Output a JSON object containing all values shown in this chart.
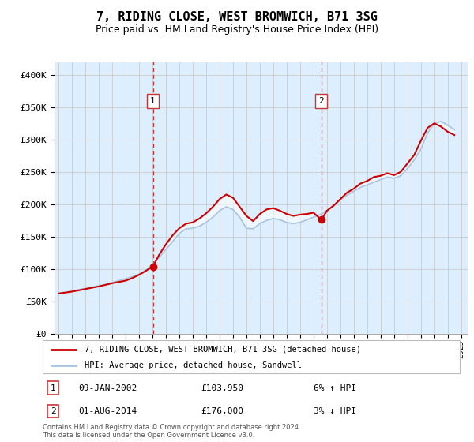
{
  "title": "7, RIDING CLOSE, WEST BROMWICH, B71 3SG",
  "subtitle": "Price paid vs. HM Land Registry's House Price Index (HPI)",
  "title_fontsize": 11,
  "subtitle_fontsize": 9,
  "background_color": "#ffffff",
  "plot_bg_color": "#ddeeff",
  "grid_color": "#cccccc",
  "legend_label_red": "7, RIDING CLOSE, WEST BROMWICH, B71 3SG (detached house)",
  "legend_label_blue": "HPI: Average price, detached house, Sandwell",
  "footer1": "Contains HM Land Registry data © Crown copyright and database right 2024.",
  "footer2": "This data is licensed under the Open Government Licence v3.0.",
  "marker1_date": 2002.03,
  "marker1_value": 103950,
  "marker2_date": 2014.58,
  "marker2_value": 176000,
  "hpi_color": "#aac4e0",
  "price_color": "#cc0000",
  "vline_color": "#cc3333",
  "shade_color": "#ddeeff",
  "ylim": [
    0,
    420000
  ],
  "xlim_start": 1994.7,
  "xlim_end": 2025.5,
  "hpi_data": {
    "years": [
      1995.0,
      1995.5,
      1996.0,
      1996.5,
      1997.0,
      1997.5,
      1998.0,
      1998.5,
      1999.0,
      1999.5,
      2000.0,
      2000.5,
      2001.0,
      2001.5,
      2002.0,
      2002.5,
      2003.0,
      2003.5,
      2004.0,
      2004.5,
      2005.0,
      2005.5,
      2006.0,
      2006.5,
      2007.0,
      2007.5,
      2008.0,
      2008.5,
      2009.0,
      2009.5,
      2010.0,
      2010.5,
      2011.0,
      2011.5,
      2012.0,
      2012.5,
      2013.0,
      2013.5,
      2014.0,
      2014.5,
      2015.0,
      2015.5,
      2016.0,
      2016.5,
      2017.0,
      2017.5,
      2018.0,
      2018.5,
      2019.0,
      2019.5,
      2020.0,
      2020.5,
      2021.0,
      2021.5,
      2022.0,
      2022.5,
      2023.0,
      2023.5,
      2024.0,
      2024.5
    ],
    "values": [
      63000,
      64000,
      66000,
      68000,
      70000,
      72000,
      74000,
      76000,
      79000,
      82000,
      85000,
      88000,
      92000,
      98000,
      106000,
      118000,
      130000,
      142000,
      155000,
      162000,
      163000,
      166000,
      172000,
      180000,
      190000,
      196000,
      192000,
      180000,
      163000,
      162000,
      170000,
      175000,
      178000,
      176000,
      172000,
      170000,
      172000,
      176000,
      180000,
      184000,
      190000,
      197000,
      207000,
      214000,
      220000,
      226000,
      230000,
      234000,
      238000,
      242000,
      240000,
      244000,
      255000,
      268000,
      285000,
      310000,
      325000,
      328000,
      322000,
      315000
    ]
  },
  "price_data": {
    "years": [
      1995.0,
      1995.5,
      1996.0,
      1996.5,
      1997.0,
      1997.5,
      1998.0,
      1998.5,
      1999.0,
      1999.5,
      2000.0,
      2000.5,
      2001.0,
      2001.5,
      2002.03,
      2002.5,
      2003.0,
      2003.5,
      2004.0,
      2004.5,
      2005.0,
      2005.5,
      2006.0,
      2006.5,
      2007.0,
      2007.5,
      2008.0,
      2008.5,
      2009.0,
      2009.5,
      2010.0,
      2010.5,
      2011.0,
      2011.5,
      2012.0,
      2012.5,
      2013.0,
      2013.5,
      2014.0,
      2014.58,
      2015.0,
      2015.5,
      2016.0,
      2016.5,
      2017.0,
      2017.5,
      2018.0,
      2018.5,
      2019.0,
      2019.5,
      2020.0,
      2020.5,
      2021.0,
      2021.5,
      2022.0,
      2022.5,
      2023.0,
      2023.5,
      2024.0,
      2024.5
    ],
    "values": [
      62000,
      63500,
      65000,
      67000,
      69000,
      71000,
      73000,
      75500,
      78000,
      80000,
      82000,
      86000,
      91000,
      97000,
      103950,
      122000,
      138000,
      152000,
      163000,
      170000,
      172000,
      178000,
      186000,
      196000,
      208000,
      215000,
      210000,
      196000,
      182000,
      174000,
      185000,
      192000,
      194000,
      190000,
      185000,
      182000,
      184000,
      185000,
      187000,
      176000,
      190000,
      198000,
      208000,
      218000,
      224000,
      232000,
      236000,
      242000,
      244000,
      248000,
      245000,
      250000,
      263000,
      276000,
      298000,
      318000,
      325000,
      320000,
      312000,
      307000
    ]
  },
  "xtick_years": [
    1995,
    1996,
    1997,
    1998,
    1999,
    2000,
    2001,
    2002,
    2003,
    2004,
    2005,
    2006,
    2007,
    2008,
    2009,
    2010,
    2011,
    2012,
    2013,
    2014,
    2015,
    2016,
    2017,
    2018,
    2019,
    2020,
    2021,
    2022,
    2023,
    2024,
    2025
  ],
  "ytick_values": [
    0,
    50000,
    100000,
    150000,
    200000,
    250000,
    300000,
    350000,
    400000
  ],
  "ytick_labels": [
    "£0",
    "£50K",
    "£100K",
    "£150K",
    "£200K",
    "£250K",
    "£300K",
    "£350K",
    "£400K"
  ]
}
